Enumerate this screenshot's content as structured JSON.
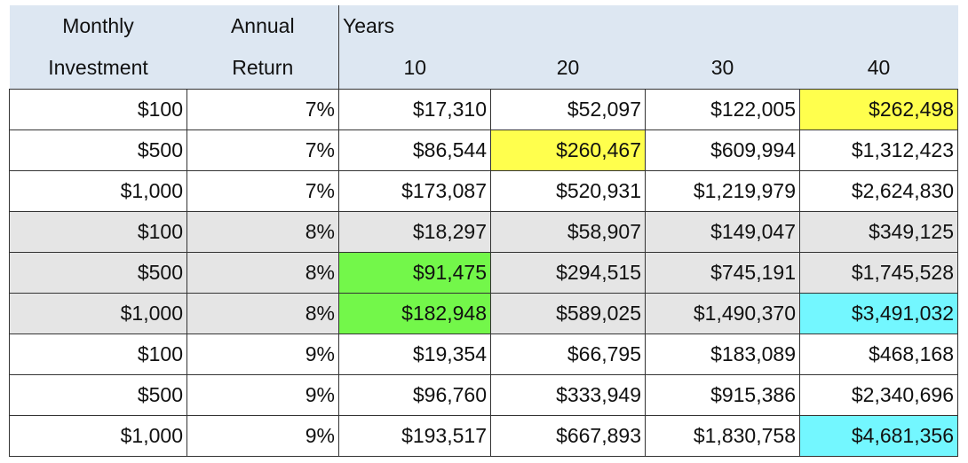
{
  "header": {
    "monthly": "Monthly",
    "investment": "Investment",
    "annual": "Annual",
    "return": "Return",
    "years": "Years",
    "y10": "10",
    "y20": "20",
    "y30": "30",
    "y40": "40"
  },
  "colors": {
    "header_bg": "#dde7f2",
    "gray_row": "#e5e5e5",
    "yellow": "#ffff4d",
    "green": "#73f74a",
    "cyan": "#73f7ff"
  },
  "rows": [
    {
      "inv": "$100",
      "ret": "7%",
      "y10": "$17,310",
      "y20": "$52,097",
      "y30": "$122,005",
      "y40": "$262,498"
    },
    {
      "inv": "$500",
      "ret": "7%",
      "y10": "$86,544",
      "y20": "$260,467",
      "y30": "$609,994",
      "y40": "$1,312,423"
    },
    {
      "inv": "$1,000",
      "ret": "7%",
      "y10": "$173,087",
      "y20": "$520,931",
      "y30": "$1,219,979",
      "y40": "$2,624,830"
    },
    {
      "inv": "$100",
      "ret": "8%",
      "y10": "$18,297",
      "y20": "$58,907",
      "y30": "$149,047",
      "y40": "$349,125"
    },
    {
      "inv": "$500",
      "ret": "8%",
      "y10": "$91,475",
      "y20": "$294,515",
      "y30": "$745,191",
      "y40": "$1,745,528"
    },
    {
      "inv": "$1,000",
      "ret": "8%",
      "y10": "$182,948",
      "y20": "$589,025",
      "y30": "$1,490,370",
      "y40": "$3,491,032"
    },
    {
      "inv": "$100",
      "ret": "9%",
      "y10": "$19,354",
      "y20": "$66,795",
      "y30": "$183,089",
      "y40": "$468,168"
    },
    {
      "inv": "$500",
      "ret": "9%",
      "y10": "$96,760",
      "y20": "$333,949",
      "y30": "$915,386",
      "y40": "$2,340,696"
    },
    {
      "inv": "$1,000",
      "ret": "9%",
      "y10": "$193,517",
      "y20": "$667,893",
      "y30": "$1,830,758",
      "y40": "$4,681,356"
    }
  ]
}
